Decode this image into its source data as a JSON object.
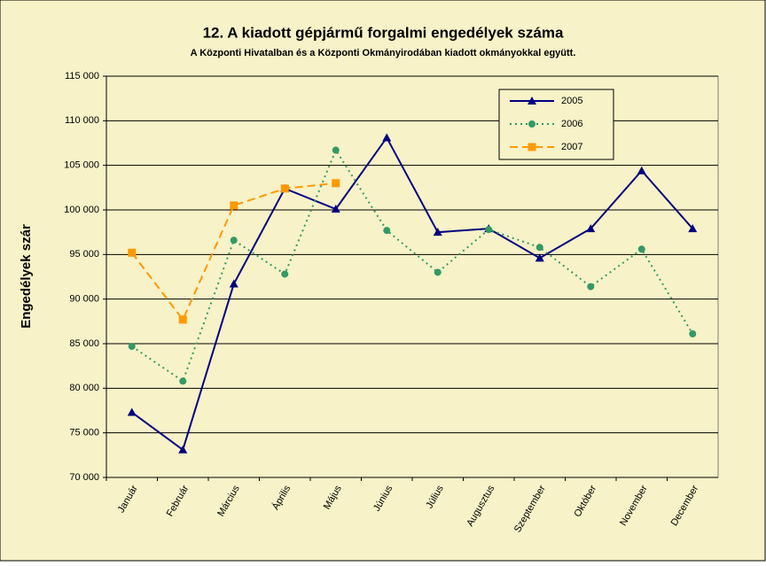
{
  "chart_data": {
    "type": "line",
    "title": "12. A  kiadott gépjármű forgalmi engedélyek száma",
    "subtitle": "A  Központi Hivatalban és a Központi Okmányirodában kiadott okmányokkal együtt.",
    "ylabel": "Engedélyek szár",
    "categories": [
      "Január",
      "Február",
      "Március",
      "Április",
      "Május",
      "Június",
      "Július",
      "Augusztus",
      "Szeptember",
      "Október",
      "November",
      "December"
    ],
    "series": [
      {
        "name": "2005",
        "color": "#000080",
        "dash": "solid",
        "marker": "triangle",
        "values": [
          77300,
          73100,
          91700,
          102400,
          100100,
          108100,
          97500,
          97900,
          94600,
          97900,
          104400,
          97900
        ]
      },
      {
        "name": "2006",
        "color": "#339966",
        "dash": "dotted",
        "marker": "circle",
        "values": [
          84700,
          80800,
          96600,
          92800,
          106700,
          97700,
          93000,
          97800,
          95800,
          91400,
          95600,
          86100
        ]
      },
      {
        "name": "2007",
        "color": "#ff9900",
        "dash": "dashed",
        "marker": "square",
        "values": [
          95200,
          87700,
          100500,
          102400,
          103000,
          null,
          null,
          null,
          null,
          null,
          null,
          null
        ]
      }
    ],
    "ylim": [
      70000,
      115000
    ],
    "yticks": [
      {
        "value": 70000,
        "label": "70 000"
      },
      {
        "value": 75000,
        "label": "75 000"
      },
      {
        "value": 80000,
        "label": "80 000"
      },
      {
        "value": 85000,
        "label": "85 000"
      },
      {
        "value": 90000,
        "label": "90 000"
      },
      {
        "value": 95000,
        "label": "95 000"
      },
      {
        "value": 100000,
        "label": "100 000"
      },
      {
        "value": 105000,
        "label": "105 000"
      },
      {
        "value": 110000,
        "label": "110 000"
      },
      {
        "value": 115000,
        "label": "115 000"
      }
    ],
    "grid": true,
    "legend": "upper right"
  }
}
